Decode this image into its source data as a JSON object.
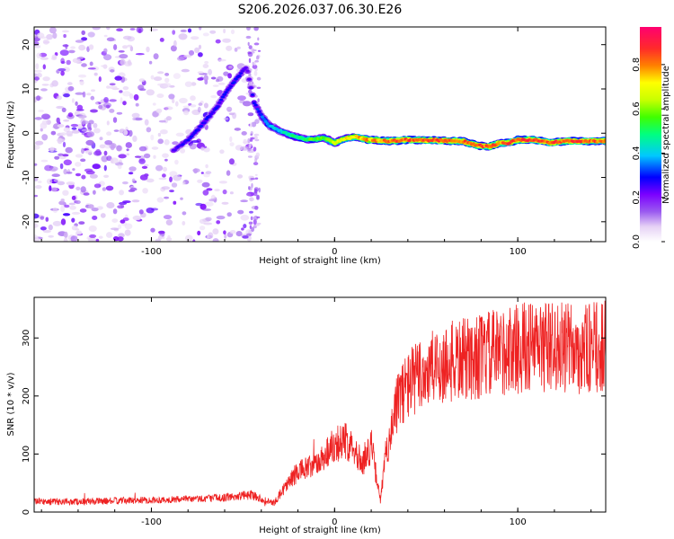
{
  "title": "S206.2026.037.06.30.E26",
  "chart_data": [
    {
      "type": "heatmap",
      "title": "S206.2026.037.06.30.E26",
      "xlabel": "Height of straight line (km)",
      "ylabel": "Frequency (Hz)",
      "xlim": [
        -164,
        148
      ],
      "ylim": [
        -24.5,
        24
      ],
      "xticks": [
        -100,
        0,
        100
      ],
      "yticks": [
        -20,
        -10,
        0,
        10,
        20
      ],
      "colorbar": {
        "label": "Normalized spectral amplitude",
        "range": [
          0,
          0.97
        ],
        "ticks": [
          0.0,
          0.2,
          0.4,
          0.6,
          0.8
        ],
        "tick_labels": [
          "0.0",
          "0.2",
          "0.4",
          "0.6",
          "0.8"
        ],
        "colors": [
          "#ffffff",
          "#e6d2f5",
          "#9a5af0",
          "#7b00ff",
          "#0000ff",
          "#00c8ff",
          "#00ff80",
          "#40ff00",
          "#c8ff00",
          "#ffff00",
          "#ff8000",
          "#ff2a2a",
          "#ff0070"
        ]
      },
      "ridge": {
        "x": [
          -88,
          -80,
          -72,
          -64,
          -58,
          -52,
          -48,
          -44,
          -40,
          -36,
          -30,
          -24,
          -18,
          -12,
          -6,
          0,
          6,
          12,
          18,
          24,
          30,
          40,
          55,
          70,
          78,
          85,
          90,
          95,
          100,
          110,
          118,
          125,
          135,
          148
        ],
        "freq": [
          -4,
          -1.5,
          2,
          6,
          10,
          13,
          15,
          7,
          4,
          1.8,
          0.6,
          -0.5,
          -1.2,
          -1.5,
          -1,
          -2.2,
          -1.2,
          -0.8,
          -1.5,
          -1.6,
          -1.8,
          -1.5,
          -1.6,
          -1.8,
          -2.8,
          -3.0,
          -2.2,
          -2.2,
          -1.5,
          -1.5,
          -2.2,
          -1.8,
          -1.8,
          -1.8
        ],
        "amp": [
          0.25,
          0.3,
          0.3,
          0.3,
          0.3,
          0.32,
          0.25,
          0.3,
          0.35,
          0.4,
          0.45,
          0.5,
          0.55,
          0.6,
          0.6,
          0.7,
          0.75,
          0.8,
          0.85,
          0.85,
          0.88,
          0.9,
          0.92,
          0.9,
          0.9,
          0.88,
          0.85,
          0.9,
          0.92,
          0.92,
          0.9,
          0.9,
          0.9,
          0.88
        ]
      },
      "noise_region": [
        -164,
        -42
      ]
    },
    {
      "type": "line",
      "xlabel": "Height of straight line (km)",
      "ylabel": "SNR (10 * v/v)",
      "xlim": [
        -164,
        148
      ],
      "ylim": [
        0,
        370
      ],
      "xticks": [
        -100,
        0,
        100
      ],
      "yticks": [
        0,
        100,
        200,
        300
      ],
      "series": [
        {
          "name": "SNR",
          "color": "#ee2222",
          "trend": {
            "x": [
              -164,
              -140,
              -110,
              -80,
              -60,
              -45,
              -38,
              -33,
              -28,
              -20,
              -10,
              0,
              10,
              15,
              20,
              25,
              28,
              32,
              36,
              42,
              50,
              60,
              75,
              90,
              105,
              120,
              135,
              148
            ],
            "y": [
              18,
              18,
              20,
              22,
              25,
              30,
              20,
              15,
              40,
              70,
              80,
              120,
              120,
              80,
              115,
              20,
              100,
              160,
              205,
              225,
              240,
              255,
              265,
              275,
              285,
              285,
              280,
              285
            ]
          }
        }
      ]
    }
  ]
}
